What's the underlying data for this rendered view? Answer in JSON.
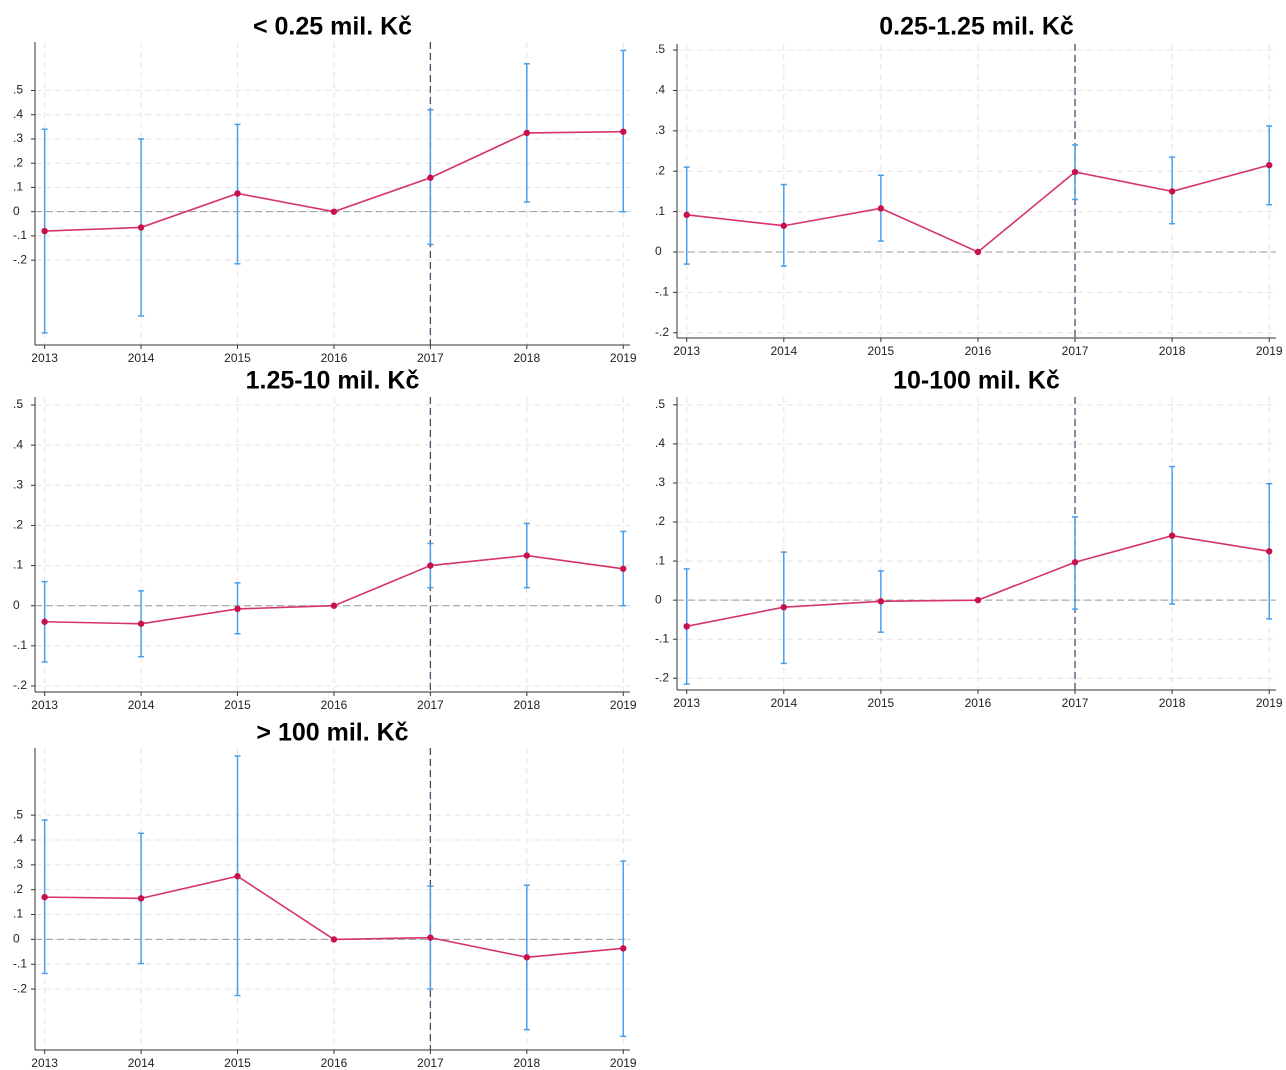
{
  "chart_data": [
    {
      "type": "line",
      "title": "< 0.25 mil. Kč",
      "x": [
        2013,
        2014,
        2015,
        2016,
        2017,
        2018,
        2019
      ],
      "values": [
        -0.08,
        -0.065,
        0.075,
        0,
        0.14,
        0.325,
        0.33
      ],
      "ci_low": [
        -0.5,
        -0.43,
        -0.215,
        null,
        -0.135,
        0.04,
        0.0
      ],
      "ci_high": [
        0.34,
        0.3,
        0.36,
        null,
        0.42,
        0.61,
        0.665
      ],
      "color": "#d6336c",
      "marker_color": "#c8104f",
      "ci_color": "#4a9fe8",
      "xlim": [
        2012.9,
        2019.07
      ],
      "xticks": [
        2013,
        2014,
        2015,
        2016,
        2017,
        2018,
        2019
      ],
      "ylim": [
        -0.55,
        0.7
      ],
      "yticks": [
        {
          "value": -0.2,
          "label": "-.2"
        },
        {
          "value": -0.1,
          "label": "-.1"
        },
        0,
        {
          "value": 0.1,
          "label": ".1"
        },
        {
          "value": 0.2,
          "label": ".2"
        },
        {
          "value": 0.3,
          "label": ".3"
        },
        {
          "value": 0.4,
          "label": ".4"
        },
        {
          "value": 0.5,
          "label": ".5"
        }
      ],
      "grid": true,
      "hline": 0,
      "vline": 2017
    },
    {
      "type": "line",
      "title": "0.25-1.25 mil. Kč",
      "x": [
        2013,
        2014,
        2015,
        2016,
        2017,
        2018,
        2019
      ],
      "values": [
        0.092,
        0.065,
        0.108,
        0,
        0.198,
        0.15,
        0.215
      ],
      "ci_low": [
        -0.03,
        -0.035,
        0.027,
        null,
        0.13,
        0.07,
        0.117
      ],
      "ci_high": [
        0.21,
        0.167,
        0.19,
        null,
        0.265,
        0.235,
        0.312
      ],
      "color": "#d6336c",
      "marker_color": "#c8104f",
      "ci_color": "#4a9fe8",
      "xlim": [
        2012.9,
        2019.07
      ],
      "xticks": [
        2013,
        2014,
        2015,
        2016,
        2017,
        2018,
        2019
      ],
      "ylim": [
        -0.213,
        0.515
      ],
      "yticks": [
        {
          "value": -0.2,
          "label": "-.2"
        },
        {
          "value": -0.1,
          "label": "-.1"
        },
        0,
        {
          "value": 0.1,
          "label": ".1"
        },
        {
          "value": 0.2,
          "label": ".2"
        },
        {
          "value": 0.3,
          "label": ".3"
        },
        {
          "value": 0.4,
          "label": ".4"
        },
        {
          "value": 0.5,
          "label": ".5"
        }
      ],
      "grid": true,
      "hline": 0,
      "vline": 2017
    },
    {
      "type": "line",
      "title": "1.25-10 mil. Kč",
      "x": [
        2013,
        2014,
        2015,
        2016,
        2017,
        2018,
        2019
      ],
      "values": [
        -0.04,
        -0.045,
        -0.008,
        0,
        0.1,
        0.125,
        0.092
      ],
      "ci_low": [
        -0.14,
        -0.127,
        -0.07,
        null,
        0.045,
        0.045,
        0.0
      ],
      "ci_high": [
        0.06,
        0.037,
        0.057,
        null,
        0.155,
        0.205,
        0.185
      ],
      "color": "#d6336c",
      "marker_color": "#c8104f",
      "ci_color": "#4a9fe8",
      "xlim": [
        2012.9,
        2019.07
      ],
      "xticks": [
        2013,
        2014,
        2015,
        2016,
        2017,
        2018,
        2019
      ],
      "ylim": [
        -0.215,
        0.52
      ],
      "yticks": [
        {
          "value": -0.2,
          "label": "-.2"
        },
        {
          "value": -0.1,
          "label": "-.1"
        },
        0,
        {
          "value": 0.1,
          "label": ".1"
        },
        {
          "value": 0.2,
          "label": ".2"
        },
        {
          "value": 0.3,
          "label": ".3"
        },
        {
          "value": 0.4,
          "label": ".4"
        },
        {
          "value": 0.5,
          "label": ".5"
        }
      ],
      "grid": true,
      "hline": 0,
      "vline": 2017
    },
    {
      "type": "line",
      "title": "10-100 mil. Kč",
      "x": [
        2013,
        2014,
        2015,
        2016,
        2017,
        2018,
        2019
      ],
      "values": [
        -0.067,
        -0.018,
        -0.003,
        0,
        0.097,
        0.165,
        0.125
      ],
      "ci_low": [
        -0.215,
        -0.162,
        -0.082,
        null,
        -0.023,
        -0.01,
        -0.048
      ],
      "ci_high": [
        0.08,
        0.123,
        0.075,
        null,
        0.213,
        0.342,
        0.298
      ],
      "color": "#d6336c",
      "marker_color": "#c8104f",
      "ci_color": "#4a9fe8",
      "xlim": [
        2012.9,
        2019.07
      ],
      "xticks": [
        2013,
        2014,
        2015,
        2016,
        2017,
        2018,
        2019
      ],
      "ylim": [
        -0.23,
        0.52
      ],
      "yticks": [
        {
          "value": -0.2,
          "label": "-.2"
        },
        {
          "value": -0.1,
          "label": "-.1"
        },
        0,
        {
          "value": 0.1,
          "label": ".1"
        },
        {
          "value": 0.2,
          "label": ".2"
        },
        {
          "value": 0.3,
          "label": ".3"
        },
        {
          "value": 0.4,
          "label": ".4"
        },
        {
          "value": 0.5,
          "label": ".5"
        }
      ],
      "grid": true,
      "hline": 0,
      "vline": 2017
    },
    {
      "type": "line",
      "title": "> 100 mil. Kč",
      "x": [
        2013,
        2014,
        2015,
        2016,
        2017,
        2018,
        2019
      ],
      "values": [
        0.17,
        0.165,
        0.254,
        0,
        0.007,
        -0.072,
        -0.036
      ],
      "ci_low": [
        -0.137,
        -0.097,
        -0.226,
        null,
        -0.2,
        -0.363,
        -0.39
      ],
      "ci_high": [
        0.48,
        0.427,
        0.738,
        null,
        0.214,
        0.218,
        0.315
      ],
      "color": "#d6336c",
      "marker_color": "#c8104f",
      "ci_color": "#4a9fe8",
      "xlim": [
        2012.9,
        2019.07
      ],
      "xticks": [
        2013,
        2014,
        2015,
        2016,
        2017,
        2018,
        2019
      ],
      "ylim": [
        -0.445,
        0.77
      ],
      "yticks": [
        {
          "value": -0.2,
          "label": "-.2"
        },
        {
          "value": -0.1,
          "label": "-.1"
        },
        0,
        {
          "value": 0.1,
          "label": ".1"
        },
        {
          "value": 0.2,
          "label": ".2"
        },
        {
          "value": 0.3,
          "label": ".3"
        },
        {
          "value": 0.4,
          "label": ".4"
        },
        {
          "value": 0.5,
          "label": ".5"
        }
      ],
      "grid": true,
      "hline": 0,
      "vline": 2017
    }
  ]
}
